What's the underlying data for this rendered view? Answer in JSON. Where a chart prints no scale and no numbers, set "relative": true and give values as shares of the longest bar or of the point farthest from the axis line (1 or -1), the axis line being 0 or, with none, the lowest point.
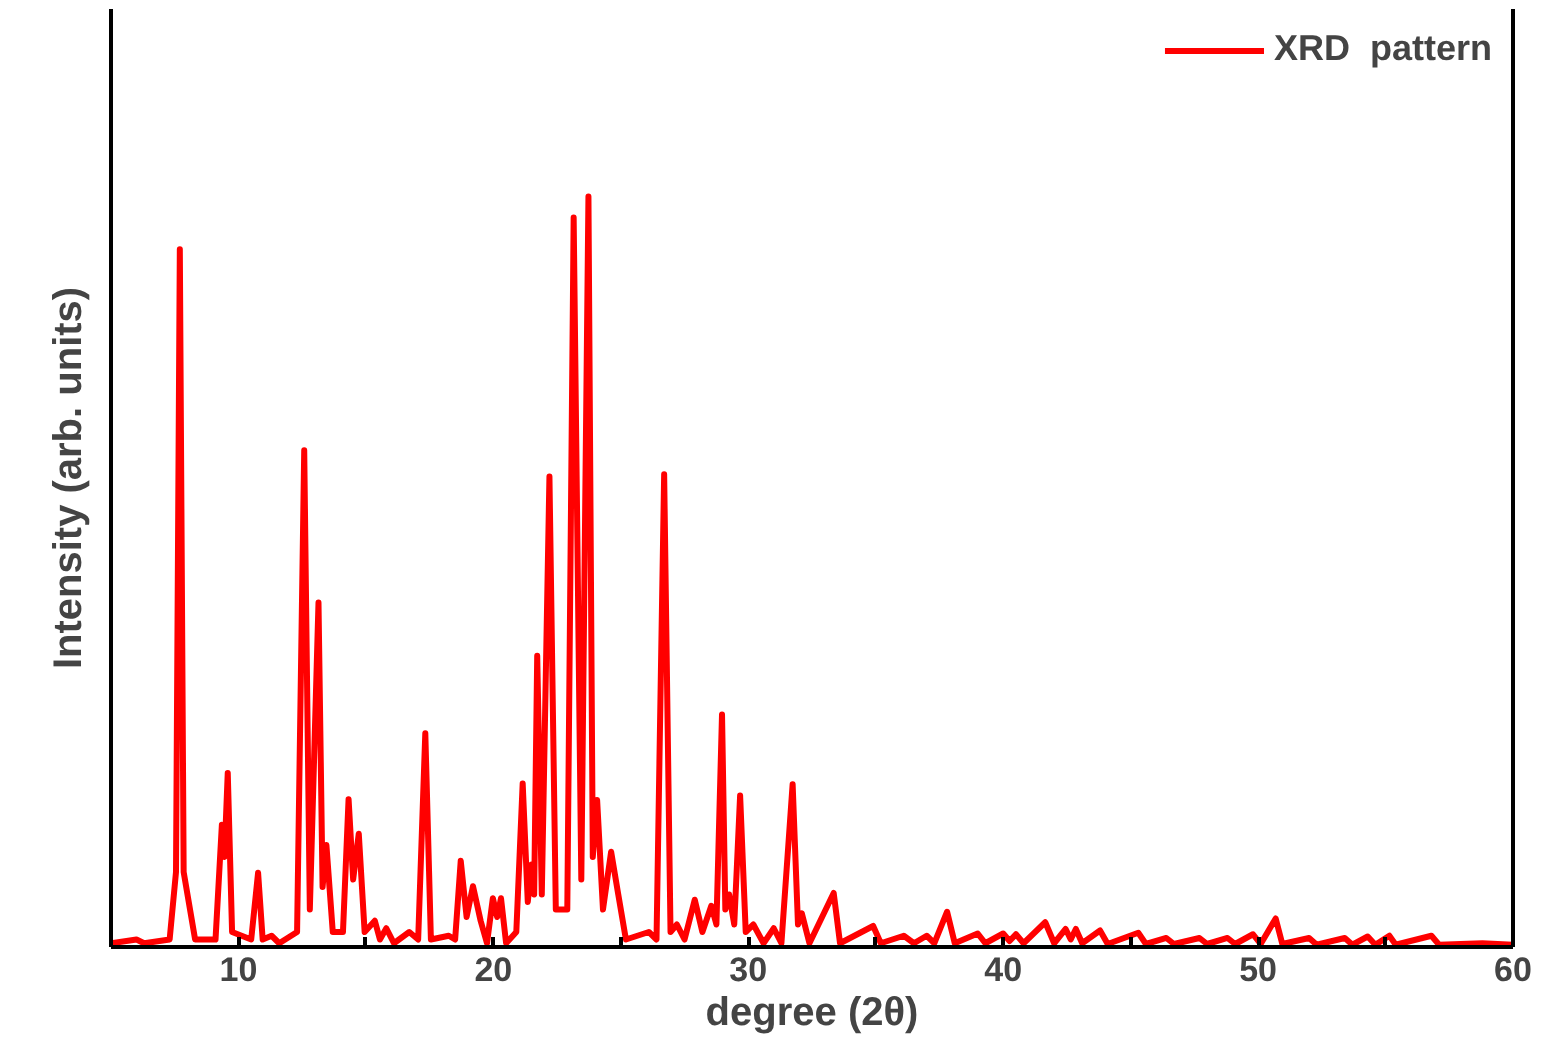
{
  "chart_data": {
    "type": "line",
    "relative": true,
    "xlabel": "degree (2θ)",
    "ylabel": "Intensity (arb. units)",
    "xlim": [
      5,
      60
    ],
    "xticks": [
      10,
      {
        "value": 15,
        "label": null
      },
      20,
      {
        "value": 25,
        "label": null
      },
      30,
      {
        "value": 35,
        "label": null
      },
      40,
      {
        "value": 45,
        "label": null
      },
      50,
      {
        "value": 55,
        "label": null
      },
      60
    ],
    "grid": false,
    "legend": "top right",
    "line_style": "solid",
    "marker": "none",
    "x": [
      5.0,
      6.0,
      6.3,
      7.3,
      7.55,
      7.7,
      7.85,
      8.3,
      9.1,
      9.35,
      9.45,
      9.58,
      9.75,
      10.5,
      10.77,
      10.95,
      11.3,
      11.6,
      12.3,
      12.58,
      12.8,
      13.14,
      13.3,
      13.45,
      13.7,
      14.1,
      14.32,
      14.5,
      14.72,
      14.95,
      15.35,
      15.55,
      15.8,
      16.1,
      16.7,
      17.05,
      17.33,
      17.55,
      18.25,
      18.5,
      18.72,
      18.95,
      19.2,
      19.5,
      19.75,
      19.98,
      20.15,
      20.3,
      20.5,
      20.9,
      21.15,
      21.35,
      21.5,
      21.6,
      21.72,
      21.9,
      22.2,
      22.45,
      22.9,
      23.15,
      23.45,
      23.73,
      23.9,
      24.07,
      24.3,
      24.62,
      24.9,
      25.2,
      26.1,
      26.4,
      26.7,
      26.95,
      27.2,
      27.5,
      27.9,
      28.2,
      28.55,
      28.75,
      28.97,
      29.1,
      29.25,
      29.45,
      29.68,
      29.9,
      30.2,
      30.6,
      31.0,
      31.3,
      31.74,
      31.95,
      32.1,
      32.4,
      33.35,
      33.6,
      34.9,
      35.2,
      36.1,
      36.5,
      37.0,
      37.3,
      37.8,
      38.1,
      39.0,
      39.3,
      40.0,
      40.25,
      40.5,
      40.8,
      41.65,
      42.0,
      42.45,
      42.65,
      42.85,
      43.1,
      43.8,
      44.1,
      45.3,
      45.6,
      46.4,
      46.7,
      47.7,
      48.0,
      48.8,
      49.1,
      49.8,
      50.1,
      50.69,
      50.95,
      52.0,
      52.3,
      53.4,
      53.7,
      54.3,
      54.6,
      55.15,
      55.4,
      56.8,
      57.1,
      58.8,
      60.0
    ],
    "series": [
      {
        "name": "XRD  pattern",
        "color": "#ff0000",
        "values": [
          0.005,
          0.01,
          0.005,
          0.01,
          0.1,
          0.93,
          0.1,
          0.01,
          0.01,
          0.163,
          0.12,
          0.232,
          0.02,
          0.01,
          0.099,
          0.01,
          0.015,
          0.005,
          0.02,
          0.662,
          0.05,
          0.459,
          0.08,
          0.136,
          0.02,
          0.02,
          0.197,
          0.09,
          0.151,
          0.02,
          0.035,
          0.01,
          0.025,
          0.005,
          0.02,
          0.01,
          0.285,
          0.01,
          0.015,
          0.01,
          0.115,
          0.04,
          0.081,
          0.035,
          0.005,
          0.065,
          0.04,
          0.065,
          0.005,
          0.02,
          0.218,
          0.06,
          0.11,
          0.07,
          0.388,
          0.07,
          0.627,
          0.05,
          0.05,
          0.972,
          0.09,
          1.0,
          0.12,
          0.196,
          0.05,
          0.127,
          0.07,
          0.01,
          0.02,
          0.01,
          0.63,
          0.02,
          0.03,
          0.01,
          0.063,
          0.02,
          0.055,
          0.03,
          0.31,
          0.05,
          0.07,
          0.03,
          0.202,
          0.02,
          0.03,
          0.005,
          0.025,
          0.005,
          0.217,
          0.03,
          0.045,
          0.005,
          0.072,
          0.005,
          0.028,
          0.005,
          0.015,
          0.005,
          0.015,
          0.005,
          0.047,
          0.005,
          0.018,
          0.005,
          0.018,
          0.008,
          0.017,
          0.005,
          0.033,
          0.005,
          0.024,
          0.01,
          0.024,
          0.005,
          0.022,
          0.004,
          0.019,
          0.004,
          0.012,
          0.004,
          0.012,
          0.004,
          0.012,
          0.004,
          0.017,
          0.004,
          0.038,
          0.004,
          0.012,
          0.003,
          0.012,
          0.003,
          0.014,
          0.003,
          0.015,
          0.003,
          0.015,
          0.003,
          0.005,
          0.003
        ]
      }
    ]
  }
}
